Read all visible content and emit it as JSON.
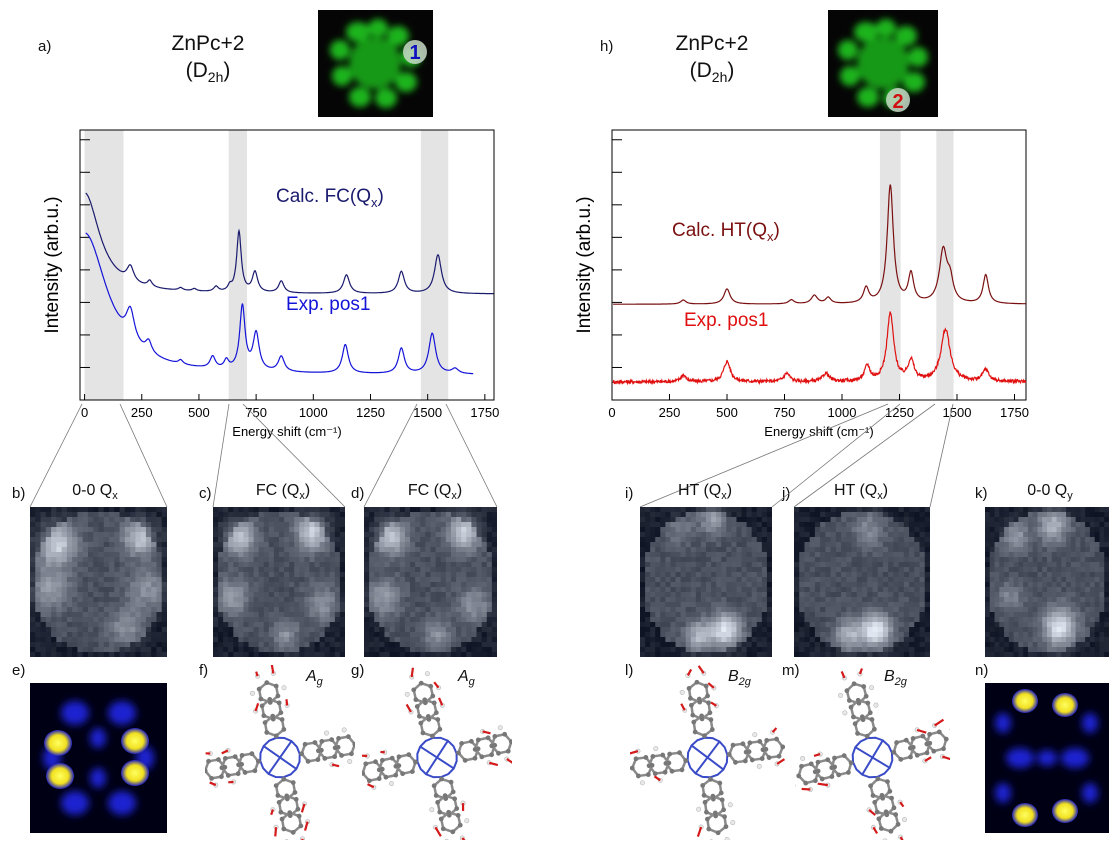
{
  "colors": {
    "calc_left": "#1a1a6e",
    "exp_left": "#1414d8",
    "calc_right": "#7a1010",
    "exp_right": "#e01010",
    "band": "#e4e4e4"
  },
  "panels": {
    "a": "a)",
    "b": "b)",
    "c": "c)",
    "d": "d)",
    "e": "e)",
    "f": "f)",
    "g": "g)",
    "h": "h)",
    "i": "i)",
    "j": "j)",
    "k": "k)",
    "l": "l)",
    "m": "m)",
    "n": "n)"
  },
  "left": {
    "title_line1": "ZnPc+2",
    "title_sym": "D",
    "title_sym_sub": "2h",
    "marker": "1"
  },
  "right": {
    "title_line1": "ZnPc+2",
    "title_sym": "D",
    "title_sym_sub": "2h",
    "marker": "2"
  },
  "maps": {
    "b": {
      "main": "0-0 Q",
      "sub": "x"
    },
    "c": {
      "main": "FC (Q",
      "sub": "x",
      "tail": ")"
    },
    "d": {
      "main": "FC (Q",
      "sub": "x",
      "tail": ")"
    },
    "i": {
      "main": "HT (Q",
      "sub": "x",
      "tail": ")"
    },
    "j": {
      "main": "HT (Q",
      "sub": "x",
      "tail": ")"
    },
    "k": {
      "main": "0-0 Q",
      "sub": "y"
    }
  },
  "modes": {
    "f": {
      "main": "A",
      "sub": "g"
    },
    "g": {
      "main": "A",
      "sub": "g"
    },
    "l": {
      "main": "B",
      "sub": "2g"
    },
    "m": {
      "main": "B",
      "sub": "2g"
    }
  },
  "chart_data": [
    {
      "type": "line",
      "panel": "a",
      "xlabel": "Energy shift (cm⁻¹)",
      "ylabel": "Intensity (arb.u.)",
      "xlim": [
        -20,
        1790
      ],
      "xticks": [
        0,
        250,
        500,
        750,
        1000,
        1250,
        1500,
        1750
      ],
      "highlight_bands": [
        [
          0,
          170
        ],
        [
          630,
          710
        ],
        [
          1470,
          1590
        ]
      ],
      "series": [
        {
          "name": "Calc. FC(Qx)",
          "label_main": "Calc. FC(Q",
          "label_sub": "x",
          "label_tail": ")",
          "peaks": [
            [
              0,
              3.0,
              80
            ],
            [
              200,
              0.45,
              18
            ],
            [
              285,
              0.18,
              12
            ],
            [
              420,
              0.08,
              12
            ],
            [
              480,
              0.07,
              12
            ],
            [
              575,
              0.15,
              12
            ],
            [
              635,
              0.15,
              10
            ],
            [
              675,
              1.8,
              12
            ],
            [
              745,
              0.6,
              14
            ],
            [
              860,
              0.35,
              14
            ],
            [
              1145,
              0.55,
              16
            ],
            [
              1385,
              0.65,
              16
            ],
            [
              1545,
              1.15,
              18
            ]
          ],
          "baseline": 2.9,
          "curve_scale": 1.0
        },
        {
          "name": "Exp. pos1",
          "label_main": "Exp. pos1",
          "peaks": [
            [
              0,
              4.2,
              120
            ],
            [
              200,
              0.9,
              22
            ],
            [
              280,
              0.35,
              16
            ],
            [
              420,
              0.12,
              12
            ],
            [
              560,
              0.35,
              14
            ],
            [
              620,
              0.25,
              12
            ],
            [
              690,
              1.9,
              14
            ],
            [
              750,
              1.1,
              16
            ],
            [
              860,
              0.45,
              16
            ],
            [
              1140,
              0.85,
              16
            ],
            [
              1385,
              0.75,
              16
            ],
            [
              1520,
              1.2,
              18
            ],
            [
              1620,
              0.15,
              18
            ]
          ],
          "baseline": 0.5,
          "curve_scale": 1.0,
          "xmax": 1700
        }
      ]
    },
    {
      "type": "line",
      "panel": "h",
      "xlabel": "Energy shift (cm⁻¹)",
      "ylabel": "Intensity (arb.u.)",
      "xlim": [
        0,
        1800
      ],
      "xticks": [
        0,
        250,
        500,
        750,
        1000,
        1250,
        1500,
        1750
      ],
      "highlight_bands": [
        [
          1165,
          1255
        ],
        [
          1410,
          1485
        ]
      ],
      "series": [
        {
          "name": "Calc. HT(Qx)",
          "label_main": "Calc. HT(Q",
          "label_sub": "x",
          "label_tail": ")",
          "peaks": [
            [
              310,
              0.12,
              14
            ],
            [
              500,
              0.45,
              16
            ],
            [
              780,
              0.12,
              14
            ],
            [
              880,
              0.25,
              16
            ],
            [
              940,
              0.18,
              14
            ],
            [
              1105,
              0.45,
              14
            ],
            [
              1210,
              3.5,
              16
            ],
            [
              1300,
              0.85,
              14
            ],
            [
              1440,
              1.55,
              20
            ],
            [
              1470,
              0.6,
              16
            ],
            [
              1625,
              0.85,
              14
            ]
          ],
          "baseline": 2.6,
          "curve_scale": 1.0
        },
        {
          "name": "Exp. pos1",
          "label_main": "Exp. pos1",
          "peaks": [
            [
              310,
              0.2,
              14
            ],
            [
              500,
              0.6,
              18
            ],
            [
              760,
              0.25,
              16
            ],
            [
              930,
              0.25,
              16
            ],
            [
              1110,
              0.45,
              14
            ],
            [
              1210,
              2.0,
              18
            ],
            [
              1300,
              0.6,
              16
            ],
            [
              1450,
              1.55,
              24
            ],
            [
              1625,
              0.35,
              16
            ]
          ],
          "baseline": 0.3,
          "curve_scale": 1.0,
          "noise": 0.05
        }
      ]
    }
  ]
}
